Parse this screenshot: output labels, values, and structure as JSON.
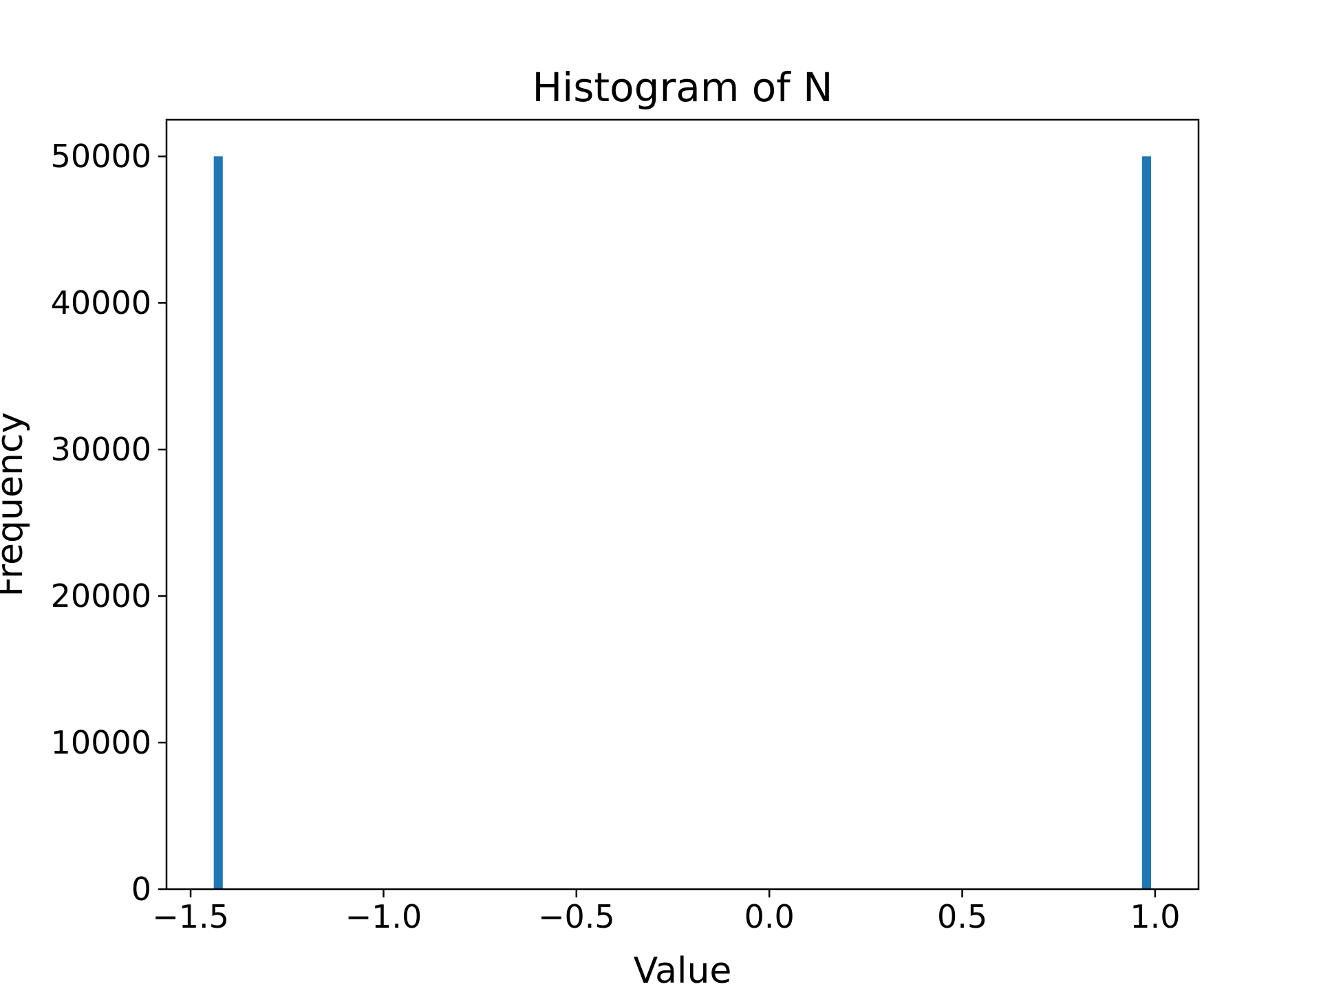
{
  "chart_data": {
    "type": "bar",
    "title": "Histogram of N",
    "xlabel": "Value",
    "ylabel": "Frequency",
    "xlim": [
      -1.5625,
      1.1125
    ],
    "ylim": [
      0,
      52500
    ],
    "xticks": [
      {
        "value": -1.5,
        "label": "−1.5"
      },
      {
        "value": -1.0,
        "label": "−1.0"
      },
      {
        "value": -0.5,
        "label": "−0.5"
      },
      {
        "value": 0.0,
        "label": "0.0"
      },
      {
        "value": 0.5,
        "label": "0.5"
      },
      {
        "value": 1.0,
        "label": "1.0"
      }
    ],
    "yticks": [
      {
        "value": 0,
        "label": "0"
      },
      {
        "value": 10000,
        "label": "10000"
      },
      {
        "value": 20000,
        "label": "20000"
      },
      {
        "value": 30000,
        "label": "30000"
      },
      {
        "value": 40000,
        "label": "40000"
      },
      {
        "value": 50000,
        "label": "50000"
      }
    ],
    "bars": [
      {
        "x0": -1.44,
        "x1": -1.4166,
        "count": 50000
      },
      {
        "x0": 0.966,
        "x1": 0.9894,
        "count": 50000
      }
    ],
    "bar_color": "#1f77b4",
    "grid": false,
    "legend": "none"
  }
}
